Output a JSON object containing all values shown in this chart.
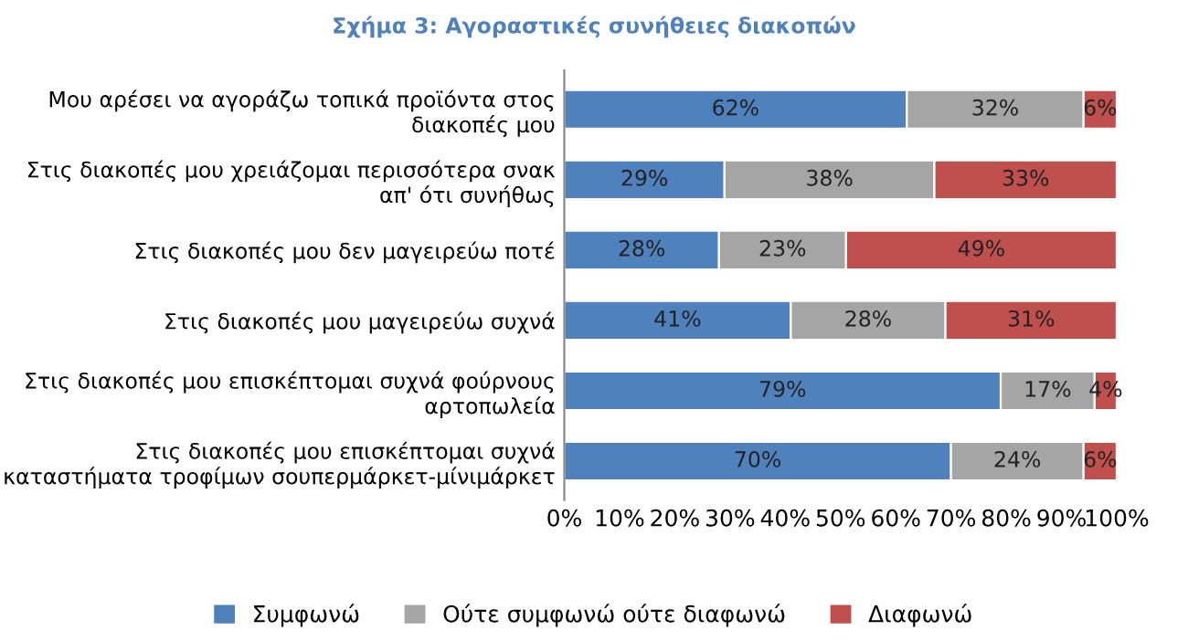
{
  "chart_data": {
    "type": "bar",
    "orientation": "horizontal",
    "stacked": true,
    "title": "Σχήμα 3: Αγοραστικές συνήθειες διακοπών",
    "categories": [
      "Μου αρέσει να αγοράζω τοπικά προϊόντα στος\nδιακοπές μου",
      "Στις διακοπές μου χρειάζομαι περισσότερα σνακ\nαπ' ότι συνήθως",
      "Στις διακοπές μου δεν μαγειρεύω ποτέ",
      "Στις διακοπές μου μαγειρεύω συχνά",
      "Στις διακοπές μου επισκέπτομαι συχνά φούρνους\nαρτοπωλεία",
      "Στις διακοπές μου επισκέπτομαι συχνά\nκαταστήματα τροφίμων σουπερμάρκετ-μίνιμάρκετ"
    ],
    "series": [
      {
        "name": "Συμφωνώ",
        "color": "#4f81bd",
        "values": [
          62,
          29,
          28,
          41,
          79,
          70
        ],
        "value_labels": [
          "62%",
          "29%",
          "28%",
          "41%",
          "79%",
          "70%"
        ]
      },
      {
        "name": "Ούτε συμφωνώ ούτε διαφωνώ",
        "color": "#a5a5a5",
        "values": [
          32,
          38,
          23,
          28,
          17,
          24
        ],
        "value_labels": [
          "32%",
          "38%",
          "23%",
          "28%",
          "17%",
          "24%"
        ]
      },
      {
        "name": "Διαφωνώ",
        "color": "#c0504d",
        "values": [
          6,
          33,
          49,
          31,
          4,
          6
        ],
        "value_labels": [
          "6%",
          "33%",
          "49%",
          "31%",
          "4%",
          "6%"
        ]
      }
    ],
    "xlim": [
      0,
      100
    ],
    "xticks": [
      {
        "value": 0,
        "label": "0%"
      },
      {
        "value": 10,
        "label": "10%"
      },
      {
        "value": 20,
        "label": "20%"
      },
      {
        "value": 30,
        "label": "30%"
      },
      {
        "value": 40,
        "label": "40%"
      },
      {
        "value": 50,
        "label": "50%"
      },
      {
        "value": 60,
        "label": "60%"
      },
      {
        "value": 70,
        "label": "70%"
      },
      {
        "value": 80,
        "label": "80%"
      },
      {
        "value": 90,
        "label": "90%"
      },
      {
        "value": 100,
        "label": "100%"
      }
    ],
    "grid": false,
    "legend": "bottom"
  }
}
